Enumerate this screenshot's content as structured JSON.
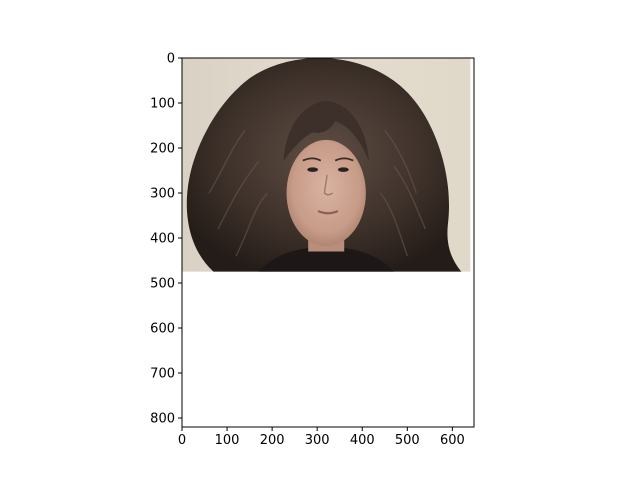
{
  "chart_data": {
    "type": "image",
    "title": "",
    "xlabel": "",
    "ylabel": "",
    "xlim": [
      0,
      648
    ],
    "ylim": [
      820,
      0
    ],
    "y_axis_inverted": true,
    "grid": false,
    "xticks": [
      0,
      100,
      200,
      300,
      400,
      500,
      600
    ],
    "yticks": [
      0,
      100,
      200,
      300,
      400,
      500,
      600,
      700,
      800
    ],
    "image_extent": {
      "x": [
        0,
        640
      ],
      "y": [
        0,
        475
      ]
    },
    "image_content": "photo of a person with long voluminous dark brown hair against a light beige wall",
    "empty_region_color": "#ffffff",
    "colors": {
      "background_wall": "#ddd6c8",
      "hair_dark": "#2a211d",
      "hair_mid": "#5a4a40",
      "skin": "#c9a18e",
      "shirt": "#1e1718"
    }
  }
}
